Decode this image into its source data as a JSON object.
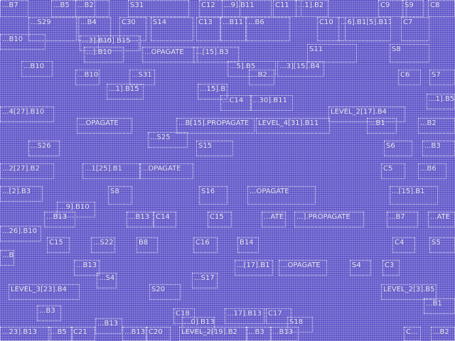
{
  "labels": [
    "...B7",
    "...B5",
    "...B2",
    "S31",
    "C12",
    "...9].B11",
    "C11",
    "...1].B2",
    "C9",
    "S9",
    "C8",
    "...S29",
    "...B4",
    "C30",
    "S14",
    "C13",
    "...B11",
    "...B6",
    "C10",
    "...6].B1[5].B11",
    "C7",
    "...B10",
    "...3].B15",
    "...0].B15",
    "...].B10",
    "...OPAGATE",
    "...[15].B3",
    "S11",
    "S8",
    "...B10",
    "...B10",
    "...S31",
    "...5].B5",
    "...3][15].B4",
    "...B2",
    "C6",
    "S7",
    "...1].B15",
    "...15].B1",
    "...C14",
    "...30].B11",
    "...4[27].B10",
    "...OPAGATE",
    "...B[15].PROPAGATE",
    "LEVEL_4[31].B11",
    "LEVEL_2[17].B4",
    "...B1",
    "...B2",
    "...1].B5",
    "...S26",
    "...S25",
    "S15",
    "S6",
    "...B3",
    "...2[27].B2",
    "...1[25].B1",
    "...DPAGATE",
    "C5",
    "...B6",
    "...[2].B3",
    "...9].B10",
    "S8",
    "S16",
    "...OPAGATE",
    "...[15].B1",
    "...B13",
    "...B13",
    "C14",
    "C15",
    "...ATE",
    "...].PROPAGATE",
    "...B7",
    "...ATE",
    "...26].B10",
    "C15",
    "...S22",
    "B8",
    "C16",
    "B14",
    "C4",
    "S5",
    "...B13",
    "...B13",
    "...[17].B1",
    "...OPAGATE",
    "S4",
    "C3",
    "LEVEL_3[23].B4",
    "...S4",
    "S20",
    "...S17",
    "LEVEL_2[3].B5",
    "...B1",
    "...B3",
    "...B13",
    "C18",
    "...0].B13",
    "...17].B13",
    "C17",
    "S18",
    "...23].B13",
    "...B5",
    "C21",
    "...B13",
    "C20",
    "LEVEL_2[19].B2",
    "...B3",
    "...B13",
    "C...",
    "...B2"
  ]
}
